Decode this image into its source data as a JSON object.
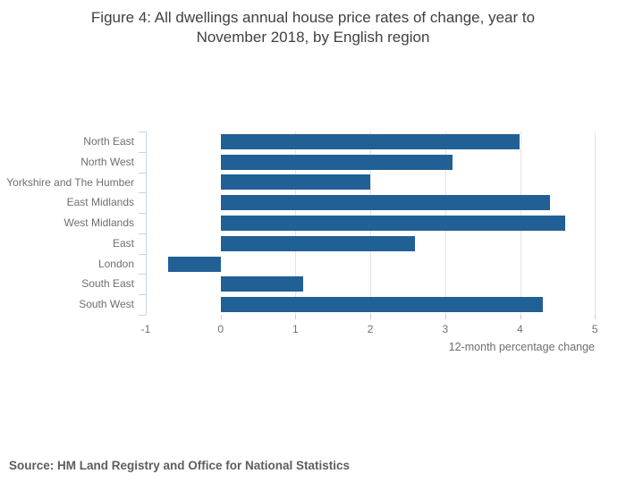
{
  "title": {
    "line1": "Figure 4: All dwellings annual house price rates of change, year to",
    "line2": "November 2018, by English region"
  },
  "source_note": "Source: HM Land Registry and Office for National Statistics",
  "chart_data": {
    "type": "bar",
    "orientation": "horizontal",
    "title": "Figure 4: All dwellings annual house price rates of change, year to November 2018, by English region",
    "categories": [
      "North East",
      "North West",
      "Yorkshire and The Humber",
      "East Midlands",
      "West Midlands",
      "East",
      "London",
      "South East",
      "South West"
    ],
    "values": [
      4.0,
      3.1,
      2.0,
      4.4,
      4.6,
      2.6,
      -0.7,
      1.1,
      4.3
    ],
    "xlabel": "12-month percentage change",
    "ylabel": "",
    "xticks": [
      -1,
      0,
      1,
      2,
      3,
      4,
      5
    ],
    "xlim": [
      -1,
      5
    ],
    "gridlines_at": [
      1,
      2,
      3,
      4,
      5
    ],
    "grid": true,
    "legend": false
  },
  "colors": {
    "bar": "#206095",
    "axis": "#c9d3e6",
    "gridline": "#e4e4e4",
    "bottom_tick": "#cccccc",
    "label_text": "#6f6f6f",
    "title_text": "#414042",
    "source_text": "#5e5e5e"
  }
}
